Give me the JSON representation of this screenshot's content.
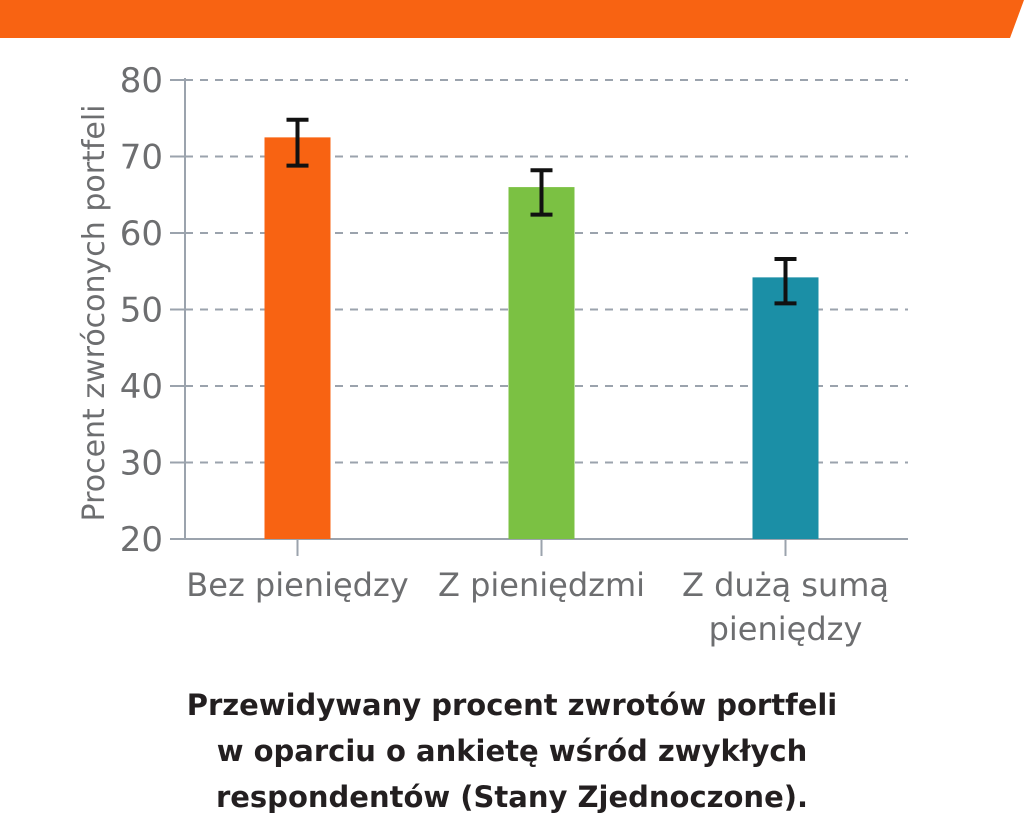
{
  "banner": {
    "color": "#f86312"
  },
  "chart_data": {
    "type": "bar",
    "categories": [
      [
        "Bez pieniędzy"
      ],
      [
        "Z pieniędzmi"
      ],
      [
        "Z dużą sumą",
        "pieniędzy"
      ]
    ],
    "values": [
      72.5,
      66,
      54.2
    ],
    "error": [
      [
        68.8,
        74.8
      ],
      [
        62.4,
        68.2
      ],
      [
        50.8,
        56.6
      ]
    ],
    "colors": [
      "#f86312",
      "#7bc143",
      "#1b8fa6"
    ],
    "ylabel": "Procent zwróconych portfeli",
    "xlabel": "",
    "ylim": [
      20,
      80
    ],
    "yticks": [
      20,
      30,
      40,
      50,
      60,
      70,
      80
    ],
    "grid": true
  },
  "caption": {
    "lines": [
      "Przewidywany procent zwrotów portfeli",
      "w oparciu o ankietę wśród zwykłych",
      "respondentów (Stany Zjednoczone)."
    ]
  }
}
